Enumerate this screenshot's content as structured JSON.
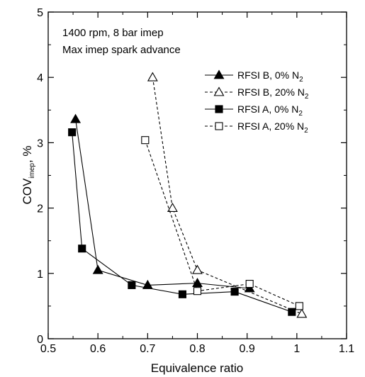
{
  "chart_data": {
    "type": "line",
    "xlabel": "Equivalence ratio",
    "ylabel": {
      "main": "COV",
      "sub": "imep",
      "tail": ", %"
    },
    "xlim": [
      0.5,
      1.1
    ],
    "ylim": [
      0,
      5
    ],
    "xticks": [
      "0.5",
      "0.6",
      "0.7",
      "0.8",
      "0.9",
      "1",
      "1.1"
    ],
    "yticks": [
      "0",
      "1",
      "2",
      "3",
      "4",
      "5"
    ],
    "annotations": [
      "1400 rpm, 8 bar imep",
      "Max imep spark advance"
    ],
    "legend_position": "top-right",
    "grid": false,
    "series": [
      {
        "name": {
          "main": "RFSI B, 0% N",
          "sub": "2"
        },
        "marker": "triangle",
        "filled": true,
        "dashed": false,
        "x": [
          0.555,
          0.6,
          0.7,
          0.8,
          0.905
        ],
        "y": [
          3.36,
          1.05,
          0.82,
          0.85,
          0.77
        ]
      },
      {
        "name": {
          "main": "RFSI B, 20% N",
          "sub": "2"
        },
        "marker": "triangle",
        "filled": false,
        "dashed": true,
        "x": [
          0.71,
          0.75,
          0.8,
          1.01
        ],
        "y": [
          4.0,
          2.0,
          1.05,
          0.38
        ]
      },
      {
        "name": {
          "main": "RFSI A, 0% N",
          "sub": "2"
        },
        "marker": "square",
        "filled": true,
        "dashed": false,
        "x": [
          0.548,
          0.568,
          0.668,
          0.77,
          0.875,
          0.99
        ],
        "y": [
          3.16,
          1.38,
          0.82,
          0.68,
          0.72,
          0.41
        ]
      },
      {
        "name": {
          "main": "RFSI A, 20% N",
          "sub": "2"
        },
        "marker": "square",
        "filled": false,
        "dashed": true,
        "x": [
          0.695,
          0.8,
          0.905,
          1.005
        ],
        "y": [
          3.04,
          0.73,
          0.84,
          0.5
        ]
      }
    ]
  }
}
